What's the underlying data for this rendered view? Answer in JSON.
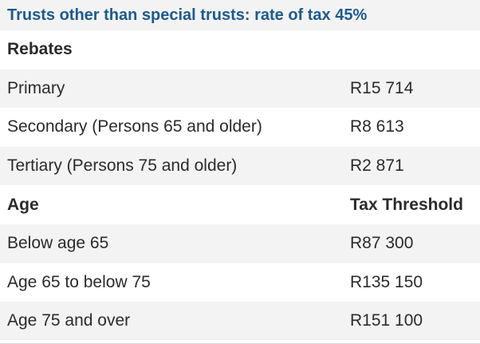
{
  "title": "Trusts other than special trusts: rate of tax 45%",
  "colors": {
    "title_text": "#1e5a8e",
    "body_text": "#2b2b2b",
    "shaded_row": "#f3f3f3",
    "white_row": "#ffffff"
  },
  "rows": [
    {
      "label": "Rebates",
      "value": "",
      "bold": true
    },
    {
      "label": "Primary",
      "value": "R15 714",
      "bold": false
    },
    {
      "label": "Secondary (Persons 65 and older)",
      "value": "R8 613",
      "bold": false
    },
    {
      "label": "Tertiary (Persons 75 and older)",
      "value": "R2 871",
      "bold": false
    },
    {
      "label": "Age",
      "value": "Tax Threshold",
      "bold": true
    },
    {
      "label": "Below age 65",
      "value": "R87 300",
      "bold": false
    },
    {
      "label": "Age 65 to below 75",
      "value": "R135 150",
      "bold": false
    },
    {
      "label": "Age 75 and over",
      "value": "R151 100",
      "bold": false
    }
  ]
}
